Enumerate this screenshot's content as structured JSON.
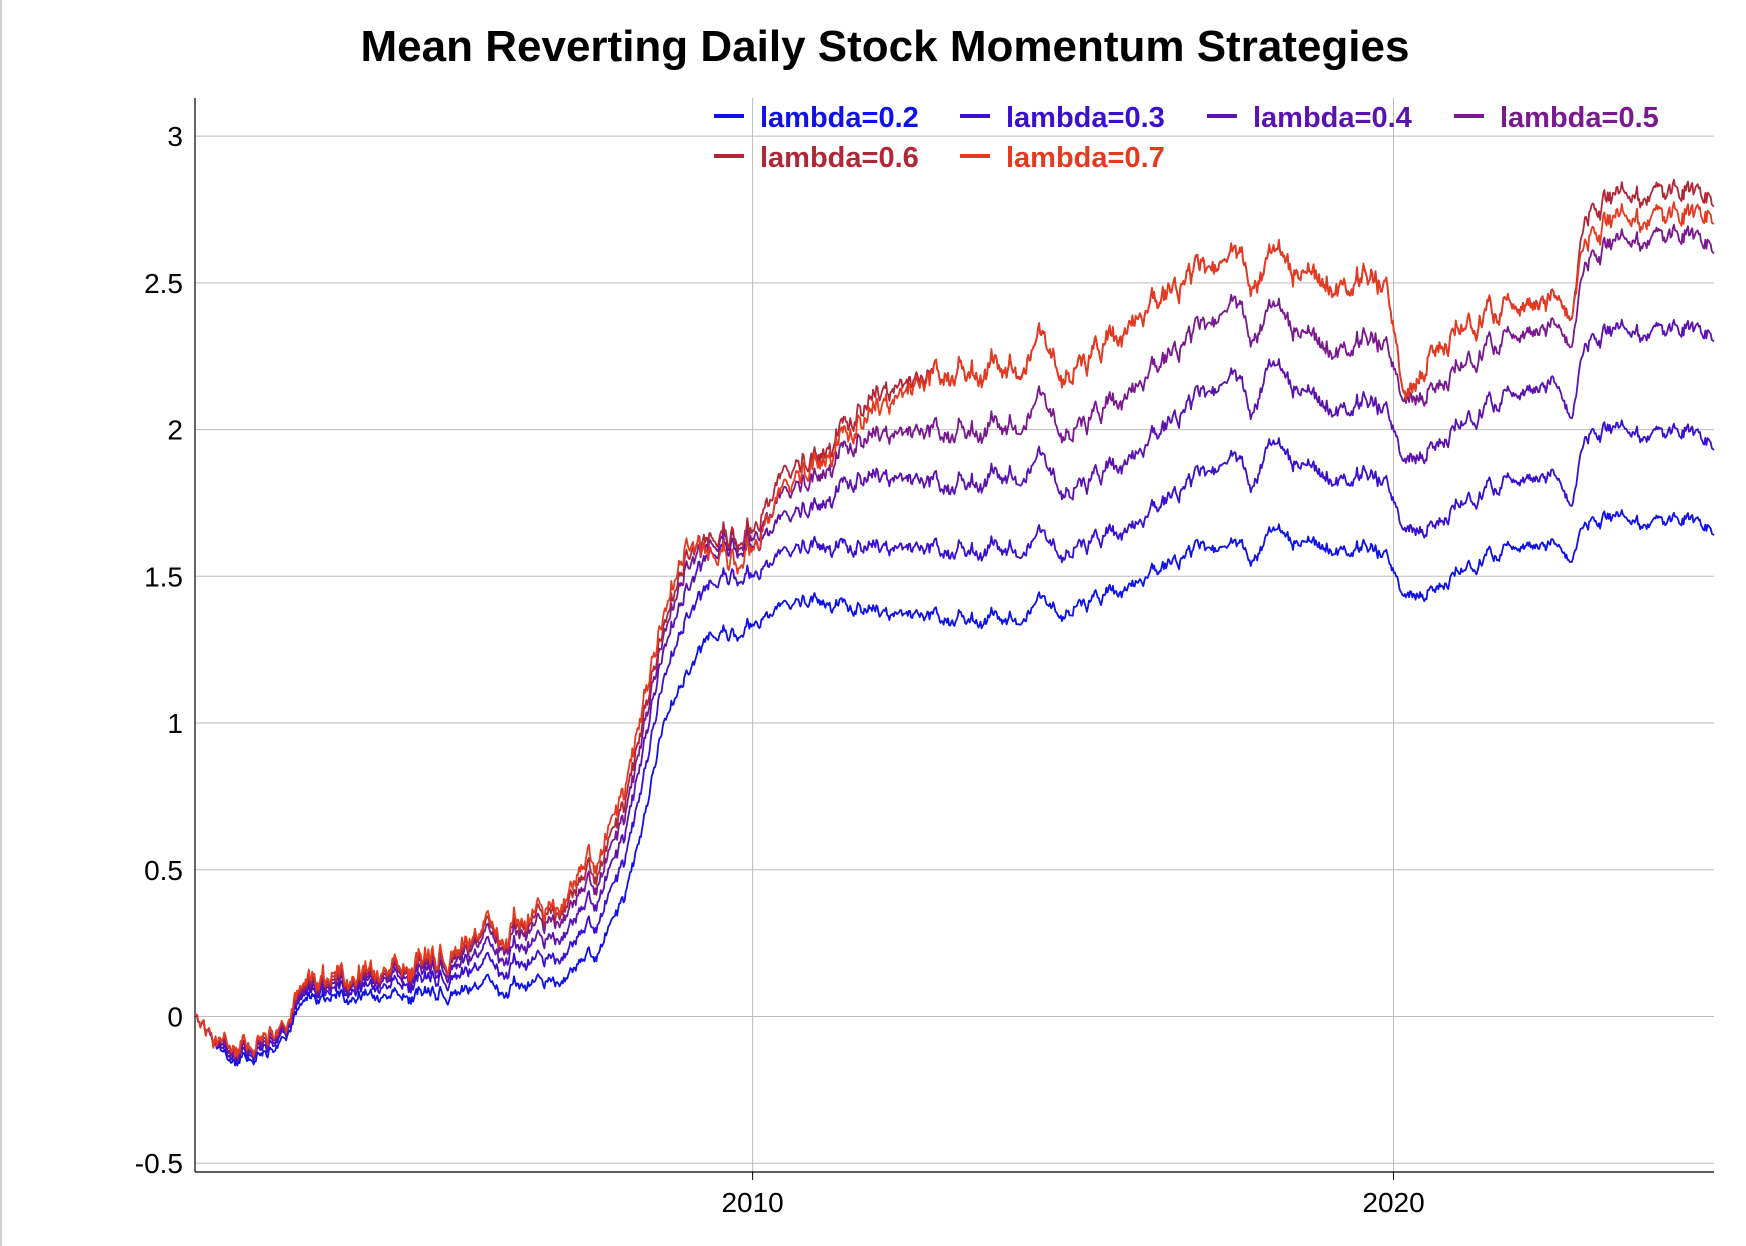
{
  "chart_data": {
    "type": "line",
    "title": "Mean Reverting Daily Stock Momentum Strategies",
    "xlabel": "",
    "ylabel": "",
    "x_ticks": [
      "2010",
      "2020"
    ],
    "y_ticks": [
      "-0.5",
      "0",
      "0.5",
      "1",
      "1.5",
      "2",
      "2.5",
      "3"
    ],
    "xlim": [
      2001.3,
      2025.0
    ],
    "ylim": [
      -0.53,
      3.13
    ],
    "grid": true,
    "legend_position": "top-right",
    "x": [
      2001.3,
      2001.5,
      2001.8,
      2002.5,
      2003.0,
      2004.0,
      2005.0,
      2006.0,
      2007.0,
      2007.5,
      2008.0,
      2008.3,
      2008.6,
      2009.0,
      2009.3,
      2009.7,
      2010.0,
      2010.5,
      2011.0,
      2011.5,
      2012.0,
      2013.0,
      2014.0,
      2014.5,
      2015.0,
      2016.0,
      2017.0,
      2017.5,
      2017.8,
      2018.0,
      2019.0,
      2019.9,
      2020.2,
      2020.6,
      2021.0,
      2022.0,
      2022.5,
      2022.8,
      2023.0,
      2024.0,
      2024.6,
      2025.0
    ],
    "series": [
      {
        "name": "lambda=0.2",
        "color": "#1010e8",
        "values": [
          0.0,
          -0.05,
          -0.17,
          -0.13,
          0.06,
          0.07,
          0.08,
          0.1,
          0.12,
          0.2,
          0.38,
          0.65,
          1.0,
          1.2,
          1.28,
          1.3,
          1.35,
          1.4,
          1.43,
          1.38,
          1.36,
          1.35,
          1.36,
          1.4,
          1.38,
          1.48,
          1.6,
          1.62,
          1.55,
          1.65,
          1.6,
          1.58,
          1.4,
          1.46,
          1.52,
          1.62,
          1.64,
          1.56,
          1.7,
          1.68,
          1.7,
          1.64
        ]
      },
      {
        "name": "lambda=0.3",
        "color": "#3a0fd0",
        "values": [
          0.0,
          -0.05,
          -0.16,
          -0.11,
          0.08,
          0.1,
          0.13,
          0.17,
          0.2,
          0.3,
          0.5,
          0.8,
          1.15,
          1.4,
          1.45,
          1.5,
          1.52,
          1.58,
          1.62,
          1.58,
          1.58,
          1.58,
          1.6,
          1.62,
          1.58,
          1.68,
          1.85,
          1.92,
          1.8,
          1.95,
          1.84,
          1.83,
          1.62,
          1.68,
          1.75,
          1.85,
          1.88,
          1.75,
          2.0,
          1.98,
          2.0,
          1.93
        ]
      },
      {
        "name": "lambda=0.4",
        "color": "#5a12b0",
        "values": [
          0.0,
          -0.05,
          -0.15,
          -0.1,
          0.09,
          0.12,
          0.16,
          0.22,
          0.27,
          0.38,
          0.58,
          0.9,
          1.25,
          1.5,
          1.55,
          1.6,
          1.62,
          1.7,
          1.75,
          1.8,
          1.82,
          1.8,
          1.85,
          1.88,
          1.78,
          1.92,
          2.12,
          2.2,
          2.05,
          2.22,
          2.08,
          2.08,
          1.85,
          1.95,
          2.02,
          2.15,
          2.2,
          2.05,
          2.32,
          2.33,
          2.35,
          2.3
        ]
      },
      {
        "name": "lambda=0.5",
        "color": "#7a1890",
        "values": [
          0.0,
          -0.05,
          -0.15,
          -0.09,
          0.1,
          0.13,
          0.18,
          0.26,
          0.33,
          0.44,
          0.64,
          0.96,
          1.3,
          1.58,
          1.58,
          1.62,
          1.65,
          1.78,
          1.85,
          1.92,
          1.96,
          1.98,
          2.02,
          2.08,
          1.98,
          2.15,
          2.35,
          2.45,
          2.3,
          2.42,
          2.28,
          2.3,
          2.05,
          2.15,
          2.22,
          2.35,
          2.4,
          2.3,
          2.6,
          2.65,
          2.67,
          2.6
        ]
      },
      {
        "name": "lambda=0.6",
        "color": "#b02838",
        "values": [
          0.0,
          -0.05,
          -0.14,
          -0.08,
          0.11,
          0.14,
          0.19,
          0.28,
          0.36,
          0.48,
          0.68,
          1.0,
          1.33,
          1.62,
          1.6,
          1.63,
          1.68,
          1.85,
          1.92,
          2.0,
          2.1,
          2.18,
          2.22,
          2.28,
          2.18,
          2.38,
          2.55,
          2.62,
          2.48,
          2.6,
          2.5,
          2.5,
          2.05,
          2.28,
          2.35,
          2.45,
          2.5,
          2.4,
          2.76,
          2.8,
          2.82,
          2.76
        ]
      },
      {
        "name": "lambda=0.7",
        "color": "#e63a20",
        "values": [
          0.0,
          -0.05,
          -0.14,
          -0.08,
          0.12,
          0.15,
          0.2,
          0.29,
          0.38,
          0.52,
          0.72,
          1.05,
          1.37,
          1.66,
          1.55,
          1.55,
          1.62,
          1.8,
          1.9,
          1.96,
          2.05,
          2.18,
          2.22,
          2.28,
          2.18,
          2.38,
          2.55,
          2.62,
          2.48,
          2.6,
          2.5,
          2.5,
          2.05,
          2.28,
          2.35,
          2.45,
          2.5,
          2.4,
          2.68,
          2.72,
          2.74,
          2.7
        ]
      }
    ]
  }
}
